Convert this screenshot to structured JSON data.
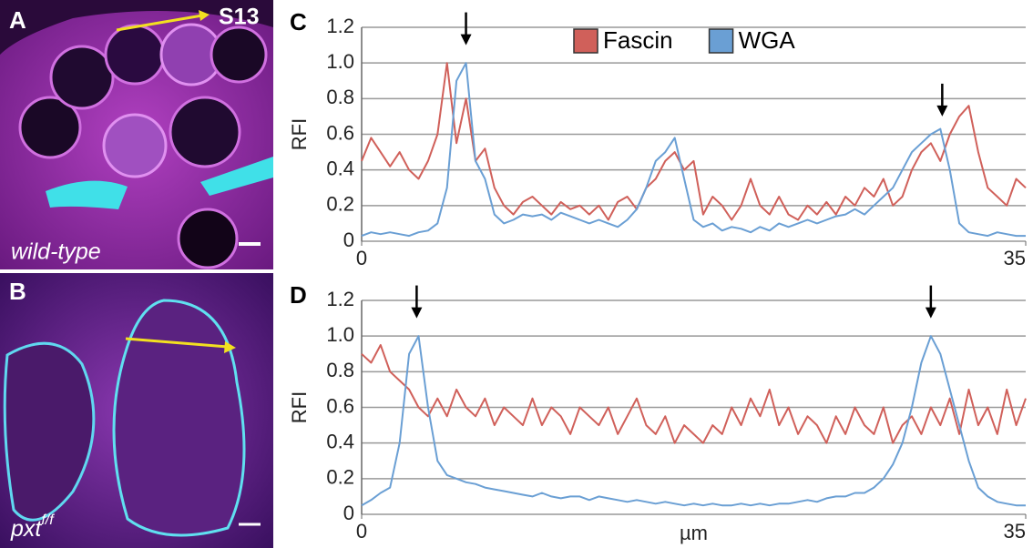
{
  "images": [
    {
      "label": "A",
      "stage": "S13",
      "caption": "wild-type"
    },
    {
      "label": "B",
      "caption": "pxt",
      "superscript": "f/f"
    }
  ],
  "chart_data": [
    {
      "type": "line",
      "panel_label": "C",
      "y_label": "RFI",
      "legend": true,
      "grid": true,
      "x": [
        0,
        0.5,
        1,
        1.5,
        2,
        2.5,
        3,
        3.5,
        4,
        4.5,
        5,
        5.5,
        6,
        6.5,
        7,
        7.5,
        8,
        8.5,
        9,
        9.5,
        10,
        10.5,
        11,
        11.5,
        12,
        12.5,
        13,
        13.5,
        14,
        14.5,
        15,
        15.5,
        16,
        16.5,
        17,
        17.5,
        18,
        18.5,
        19,
        19.5,
        20,
        20.5,
        21,
        21.5,
        22,
        22.5,
        23,
        23.5,
        24,
        24.5,
        25,
        25.5,
        26,
        26.5,
        27,
        27.5,
        28,
        28.5,
        29,
        29.5,
        30,
        30.5,
        31,
        31.5,
        32,
        32.5,
        33,
        33.5,
        34,
        34.5,
        35
      ],
      "series": [
        {
          "name": "Fascin",
          "color": "#d0605a",
          "values": [
            0.45,
            0.58,
            0.5,
            0.42,
            0.5,
            0.4,
            0.35,
            0.45,
            0.6,
            1.0,
            0.55,
            0.8,
            0.45,
            0.52,
            0.3,
            0.2,
            0.15,
            0.22,
            0.25,
            0.2,
            0.15,
            0.22,
            0.18,
            0.2,
            0.15,
            0.2,
            0.12,
            0.22,
            0.25,
            0.18,
            0.3,
            0.35,
            0.45,
            0.5,
            0.4,
            0.45,
            0.15,
            0.25,
            0.2,
            0.12,
            0.2,
            0.35,
            0.2,
            0.15,
            0.25,
            0.15,
            0.12,
            0.2,
            0.15,
            0.22,
            0.15,
            0.25,
            0.2,
            0.3,
            0.25,
            0.35,
            0.2,
            0.25,
            0.4,
            0.5,
            0.55,
            0.45,
            0.6,
            0.7,
            0.76,
            0.5,
            0.3,
            0.25,
            0.2,
            0.35,
            0.3
          ]
        },
        {
          "name": "WGA",
          "color": "#6a9fd4",
          "values": [
            0.03,
            0.05,
            0.04,
            0.05,
            0.04,
            0.03,
            0.05,
            0.06,
            0.1,
            0.3,
            0.9,
            1.0,
            0.45,
            0.35,
            0.15,
            0.1,
            0.12,
            0.15,
            0.14,
            0.15,
            0.12,
            0.16,
            0.14,
            0.12,
            0.1,
            0.12,
            0.1,
            0.08,
            0.12,
            0.18,
            0.3,
            0.45,
            0.5,
            0.58,
            0.35,
            0.12,
            0.08,
            0.1,
            0.06,
            0.08,
            0.07,
            0.05,
            0.08,
            0.06,
            0.1,
            0.08,
            0.1,
            0.12,
            0.1,
            0.12,
            0.14,
            0.15,
            0.18,
            0.15,
            0.2,
            0.25,
            0.3,
            0.4,
            0.5,
            0.55,
            0.6,
            0.63,
            0.4,
            0.1,
            0.05,
            0.04,
            0.03,
            0.05,
            0.04,
            0.03,
            0.03
          ]
        }
      ],
      "arrows": [
        {
          "x": 5.5,
          "y": 1.1
        },
        {
          "x": 30.6,
          "y": 0.7
        }
      ],
      "xlim": [
        0,
        35
      ],
      "xticks": [
        0,
        35
      ],
      "ylim": [
        0,
        1.2
      ],
      "yticks": [
        0,
        0.2,
        0.4,
        0.6,
        0.8,
        {
          "value": 1,
          "label": "1.0"
        },
        1.2
      ]
    },
    {
      "type": "line",
      "panel_label": "D",
      "y_label": "RFI",
      "x_label": "µm",
      "legend": false,
      "grid": true,
      "x": [
        0,
        0.5,
        1,
        1.5,
        2,
        2.5,
        3,
        3.5,
        4,
        4.5,
        5,
        5.5,
        6,
        6.5,
        7,
        7.5,
        8,
        8.5,
        9,
        9.5,
        10,
        10.5,
        11,
        11.5,
        12,
        12.5,
        13,
        13.5,
        14,
        14.5,
        15,
        15.5,
        16,
        16.5,
        17,
        17.5,
        18,
        18.5,
        19,
        19.5,
        20,
        20.5,
        21,
        21.5,
        22,
        22.5,
        23,
        23.5,
        24,
        24.5,
        25,
        25.5,
        26,
        26.5,
        27,
        27.5,
        28,
        28.5,
        29,
        29.5,
        30,
        30.5,
        31,
        31.5,
        32,
        32.5,
        33,
        33.5,
        34,
        34.5,
        35
      ],
      "series": [
        {
          "name": "Fascin",
          "color": "#d0605a",
          "values": [
            0.9,
            0.85,
            0.95,
            0.8,
            0.75,
            0.7,
            0.6,
            0.55,
            0.65,
            0.55,
            0.7,
            0.6,
            0.55,
            0.65,
            0.5,
            0.6,
            0.55,
            0.5,
            0.65,
            0.5,
            0.6,
            0.55,
            0.45,
            0.6,
            0.55,
            0.5,
            0.6,
            0.45,
            0.55,
            0.65,
            0.5,
            0.45,
            0.55,
            0.4,
            0.5,
            0.45,
            0.4,
            0.5,
            0.45,
            0.6,
            0.5,
            0.65,
            0.55,
            0.7,
            0.5,
            0.6,
            0.45,
            0.55,
            0.5,
            0.4,
            0.55,
            0.45,
            0.6,
            0.5,
            0.45,
            0.6,
            0.4,
            0.5,
            0.55,
            0.45,
            0.6,
            0.5,
            0.65,
            0.45,
            0.7,
            0.5,
            0.6,
            0.45,
            0.7,
            0.5,
            0.65
          ]
        },
        {
          "name": "WGA",
          "color": "#6a9fd4",
          "values": [
            0.05,
            0.08,
            0.12,
            0.15,
            0.4,
            0.9,
            1.0,
            0.6,
            0.3,
            0.22,
            0.2,
            0.18,
            0.17,
            0.15,
            0.14,
            0.13,
            0.12,
            0.11,
            0.1,
            0.12,
            0.1,
            0.09,
            0.1,
            0.1,
            0.08,
            0.1,
            0.09,
            0.08,
            0.07,
            0.08,
            0.07,
            0.06,
            0.07,
            0.06,
            0.05,
            0.06,
            0.05,
            0.06,
            0.05,
            0.05,
            0.06,
            0.05,
            0.06,
            0.05,
            0.06,
            0.06,
            0.07,
            0.08,
            0.07,
            0.09,
            0.1,
            0.1,
            0.12,
            0.12,
            0.15,
            0.2,
            0.28,
            0.4,
            0.6,
            0.85,
            1.0,
            0.9,
            0.7,
            0.5,
            0.3,
            0.15,
            0.1,
            0.07,
            0.06,
            0.05,
            0.05
          ]
        }
      ],
      "arrows": [
        {
          "x": 2.9,
          "y": 1.1
        },
        {
          "x": 30.0,
          "y": 1.1
        }
      ],
      "xlim": [
        0,
        35
      ],
      "xticks": [
        0,
        35
      ],
      "ylim": [
        0,
        1.2
      ],
      "yticks": [
        0,
        0.2,
        0.4,
        0.6,
        0.8,
        {
          "value": 1,
          "label": "1.0"
        },
        1.2
      ]
    }
  ]
}
